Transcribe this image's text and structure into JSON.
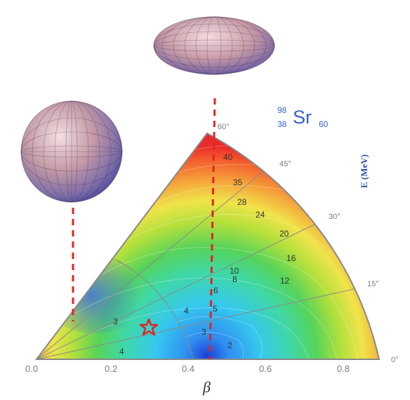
{
  "nucleus": {
    "mass_number": "98",
    "atomic_number": "38",
    "symbol": "Sr",
    "neutron_number": "60"
  },
  "energy_axis_label": "E (MeV)",
  "x_axis": {
    "label": "β",
    "ticks": [
      "0.0",
      "0.2",
      "0.4",
      "0.6",
      "0.8"
    ]
  },
  "gamma_ticks": [
    "0°",
    "15°",
    "30°",
    "45°",
    "60°"
  ],
  "contour_labels": [
    "40",
    "35",
    "28",
    "24",
    "20",
    "16",
    "12",
    "10",
    "8",
    "6",
    "5",
    "4",
    "3",
    "3",
    "2",
    "4"
  ],
  "colors": {
    "dashed_line": "#e0261d",
    "star": "#e0261d",
    "axis_text": "#7a7a7a",
    "nucleus_text": "#3a63c8"
  }
}
